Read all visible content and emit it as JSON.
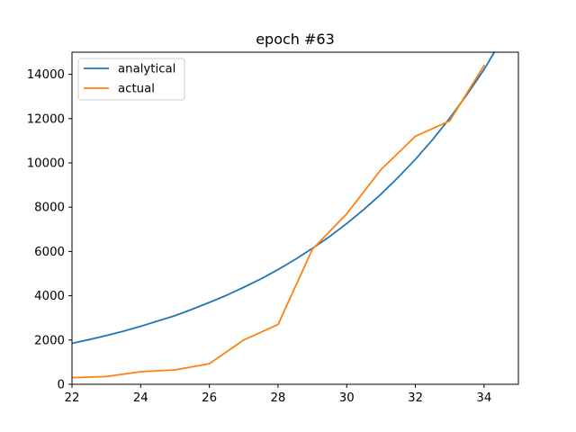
{
  "chart_data": {
    "type": "line",
    "title": "epoch #63",
    "xlabel": "",
    "ylabel": "",
    "xlim": [
      22,
      35
    ],
    "ylim": [
      0,
      15000
    ],
    "xticks": [
      22,
      24,
      26,
      28,
      30,
      32,
      34
    ],
    "yticks": [
      0,
      2000,
      4000,
      6000,
      8000,
      10000,
      12000,
      14000
    ],
    "grid": false,
    "legend_position": "top-left",
    "series": [
      {
        "name": "analytical",
        "color": "#1f77b4",
        "x": [
          22,
          22.5,
          23,
          23.5,
          24,
          24.5,
          25,
          25.5,
          26,
          26.5,
          27,
          27.5,
          28,
          28.5,
          29,
          29.5,
          30,
          30.5,
          31,
          31.5,
          32,
          32.5,
          33,
          33.5,
          34,
          34.3
        ],
        "y": [
          1850,
          2020,
          2200,
          2400,
          2620,
          2860,
          3100,
          3390,
          3700,
          4020,
          4380,
          4760,
          5180,
          5640,
          6140,
          6670,
          7260,
          7900,
          8590,
          9350,
          10160,
          11050,
          12020,
          13080,
          14220,
          15000
        ]
      },
      {
        "name": "actual",
        "color": "#ff7f0e",
        "x": [
          22,
          23,
          24,
          25,
          26,
          27,
          28,
          29,
          30,
          31,
          32,
          33,
          34
        ],
        "y": [
          300,
          350,
          570,
          650,
          930,
          2000,
          2700,
          6100,
          7700,
          9700,
          11200,
          11900,
          14400
        ]
      }
    ]
  }
}
